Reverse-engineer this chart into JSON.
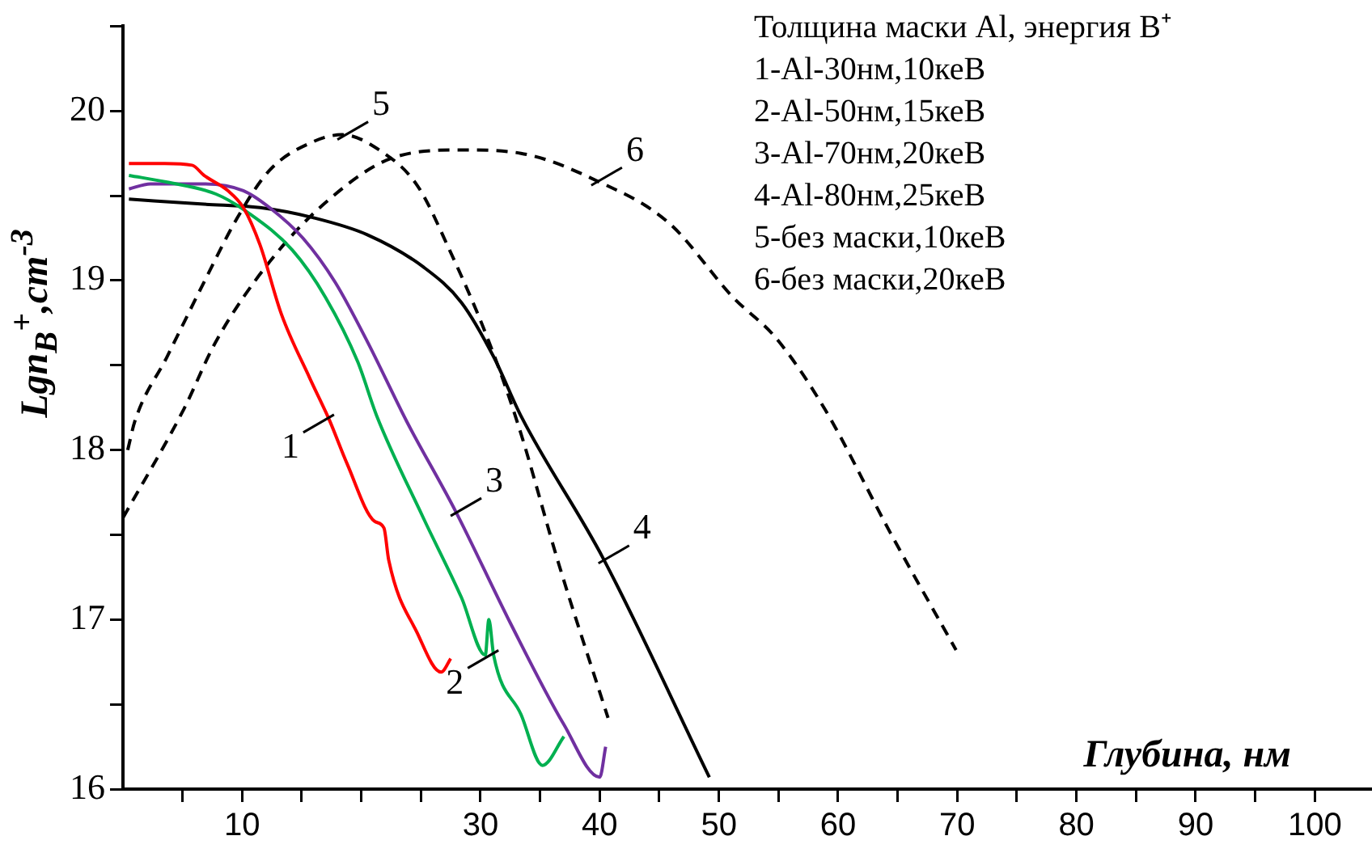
{
  "chart_data": {
    "type": "line",
    "xlabel": "Глубина, нм",
    "ylabel": "Lgn$_{B}$$^{+}$,cm$^{-3}$",
    "xlim": [
      0,
      104.8
    ],
    "ylim": [
      16,
      20.5
    ],
    "xticks": [
      {
        "value": 5,
        "label": null
      },
      10,
      {
        "value": 15,
        "label": null
      },
      {
        "value": 20,
        "label": null
      },
      {
        "value": 25,
        "label": null
      },
      30,
      {
        "value": 35,
        "label": null
      },
      40,
      {
        "value": 45,
        "label": null
      },
      50,
      {
        "value": 55,
        "label": null
      },
      60,
      {
        "value": 65,
        "label": null
      },
      70,
      {
        "value": 75,
        "label": null
      },
      80,
      {
        "value": 85,
        "label": null
      },
      90,
      {
        "value": 95,
        "label": null
      },
      100
    ],
    "yticks": [
      16,
      {
        "value": 16.5,
        "label": null
      },
      17,
      {
        "value": 17.5,
        "label": null
      },
      18,
      {
        "value": 18.5,
        "label": null
      },
      19,
      {
        "value": 19.5,
        "label": null
      },
      20,
      {
        "value": 20.5,
        "label": null
      }
    ],
    "grid": false,
    "legend": false,
    "marker": "none",
    "series": [
      {
        "color": "#ff0000",
        "line_style": "solid",
        "x": [
          0.5,
          3.5,
          5.8,
          6.8,
          8.8,
          10.1,
          11.5,
          13.3,
          15.7,
          17.3,
          18.8,
          21.1,
          21.9,
          22.3,
          24.7,
          26.7,
          27.5
        ],
        "values": [
          19.69,
          19.69,
          19.68,
          19.62,
          19.53,
          19.43,
          19.21,
          18.8,
          18.42,
          18.18,
          17.92,
          17.58,
          17.54,
          17.35,
          16.92,
          16.69,
          16.77
        ]
      },
      {
        "color": "#00b050",
        "line_style": "solid",
        "x": [
          0.5,
          3.7,
          7.8,
          10.5,
          14.2,
          17,
          19.7,
          21.3,
          25.2,
          28.4,
          30.4,
          30.7,
          31.1,
          33.4,
          35.2,
          37
        ],
        "values": [
          19.62,
          19.58,
          19.51,
          19.4,
          19.18,
          18.9,
          18.52,
          18.2,
          17.6,
          17.13,
          16.79,
          17.0,
          16.79,
          16.44,
          16.14,
          16.31
        ]
      },
      {
        "color": "#7030a0",
        "line_style": "solid",
        "x": [
          0.5,
          2.3,
          6.8,
          10.1,
          12.3,
          15.1,
          17.8,
          20.5,
          23.8,
          27.9,
          32.5,
          37,
          40,
          40.5
        ],
        "values": [
          19.54,
          19.57,
          19.57,
          19.53,
          19.43,
          19.25,
          18.99,
          18.64,
          18.17,
          17.64,
          16.98,
          16.38,
          16.07,
          16.25
        ]
      },
      {
        "color": "#000000",
        "line_style": "solid",
        "x": [
          0.5,
          6.8,
          11.5,
          16,
          20.5,
          25.2,
          28.4,
          31.1,
          33.4,
          40.3,
          49.2
        ],
        "values": [
          19.48,
          19.45,
          19.43,
          19.37,
          19.27,
          19.08,
          18.87,
          18.55,
          18.2,
          17.36,
          16.07
        ]
      },
      {
        "color": "#000000",
        "line_style": "dashed",
        "x": [
          0.4,
          1,
          3.7,
          6.8,
          9.6,
          12.3,
          16,
          18.4,
          21.5,
          24.7,
          27.4,
          30.7,
          33.2,
          36.6,
          40.7
        ],
        "values": [
          18.0,
          18.17,
          18.55,
          18.99,
          19.37,
          19.65,
          19.82,
          19.86,
          19.77,
          19.56,
          19.18,
          18.64,
          18.14,
          17.32,
          16.42
        ]
      },
      {
        "color": "#000000",
        "line_style": "dashed",
        "x": [
          0,
          5.1,
          7.8,
          12.3,
          17,
          22.5,
          28.4,
          33.4,
          39.7,
          45.8,
          51.2,
          54.8,
          58.9,
          64.4,
          69.9
        ],
        "values": [
          17.6,
          18.24,
          18.64,
          19.11,
          19.46,
          19.72,
          19.77,
          19.75,
          19.59,
          19.34,
          18.9,
          18.66,
          18.24,
          17.51,
          16.82
        ]
      }
    ],
    "annotations": [
      "Толщина маски Al, энергия B⁺",
      "1-Al-30нм,10кеВ",
      "2-Al-50нм,15кеВ",
      "3-Al-70нм,20кеВ",
      "4-Al-80нм,25кеВ",
      "5-без маски,10кеВ",
      "6-без маски,20кеВ",
      {
        "text": "1",
        "x": 17.3,
        "y": 18.18
      },
      {
        "text": "2",
        "x": 31.1,
        "y": 16.79
      },
      {
        "text": "3",
        "x": 27.9,
        "y": 17.64
      },
      {
        "text": "4",
        "x": 40.3,
        "y": 17.36
      },
      {
        "text": "5",
        "x": 18.4,
        "y": 19.86
      },
      {
        "text": "6",
        "x": 39.7,
        "y": 19.59
      }
    ]
  }
}
